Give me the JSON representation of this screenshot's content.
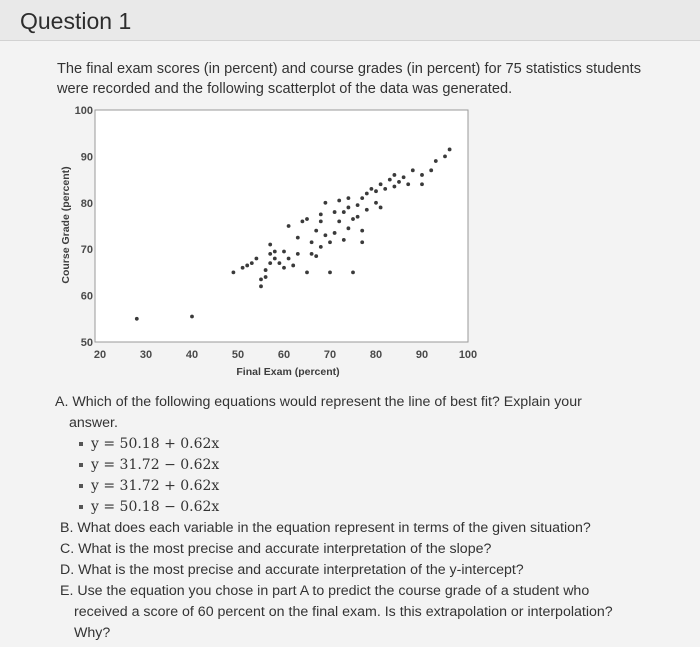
{
  "header": {
    "title": "Question 1"
  },
  "intro": {
    "line1": "The final exam scores (in percent) and course grades (in percent) for 75 statistics students",
    "line2": "were recorded and the following scatterplot of the data was generated."
  },
  "chart_data": {
    "type": "scatter",
    "xlabel": "Final Exam (percent)",
    "ylabel": "Course Grade (percent)",
    "xlim": [
      20,
      100
    ],
    "ylim": [
      50,
      100
    ],
    "xticks": [
      "20",
      "30",
      "40",
      "50",
      "60",
      "70",
      "80",
      "90",
      "100"
    ],
    "yticks": [
      "50",
      "60",
      "70",
      "80",
      "90",
      "100"
    ],
    "grid": false,
    "points": [
      [
        28,
        55
      ],
      [
        40,
        55.5
      ],
      [
        49,
        65
      ],
      [
        51,
        66
      ],
      [
        52,
        66.5
      ],
      [
        53,
        67
      ],
      [
        54,
        68
      ],
      [
        55,
        62
      ],
      [
        55,
        63.5
      ],
      [
        56,
        64
      ],
      [
        56,
        65.5
      ],
      [
        57,
        67
      ],
      [
        57,
        69
      ],
      [
        57,
        71
      ],
      [
        58,
        68
      ],
      [
        58,
        69.5
      ],
      [
        59,
        67
      ],
      [
        60,
        69.5
      ],
      [
        60,
        66
      ],
      [
        61,
        68
      ],
      [
        61,
        75
      ],
      [
        62,
        66.5
      ],
      [
        63,
        69
      ],
      [
        63,
        72.5
      ],
      [
        64,
        76
      ],
      [
        65,
        76.5
      ],
      [
        65,
        65
      ],
      [
        66,
        69
      ],
      [
        66,
        71.5
      ],
      [
        67,
        68.5
      ],
      [
        67,
        74
      ],
      [
        68,
        70.5
      ],
      [
        68,
        76
      ],
      [
        68,
        77.5
      ],
      [
        69,
        73
      ],
      [
        69,
        80
      ],
      [
        70,
        65
      ],
      [
        70,
        71.5
      ],
      [
        71,
        73.5
      ],
      [
        71,
        78
      ],
      [
        72,
        80.5
      ],
      [
        72,
        76
      ],
      [
        73,
        72
      ],
      [
        73,
        78
      ],
      [
        74,
        74.5
      ],
      [
        74,
        79
      ],
      [
        74,
        81
      ],
      [
        75,
        65
      ],
      [
        75,
        76.5
      ],
      [
        76,
        79.5
      ],
      [
        76,
        77
      ],
      [
        77,
        71.5
      ],
      [
        77,
        74
      ],
      [
        77,
        81
      ],
      [
        78,
        82
      ],
      [
        78,
        78.5
      ],
      [
        79,
        83
      ],
      [
        80,
        80
      ],
      [
        80,
        82.5
      ],
      [
        81,
        84
      ],
      [
        81,
        79
      ],
      [
        82,
        83
      ],
      [
        83,
        85
      ],
      [
        84,
        83.5
      ],
      [
        84,
        86
      ],
      [
        85,
        84.5
      ],
      [
        86,
        85.5
      ],
      [
        87,
        84
      ],
      [
        88,
        87
      ],
      [
        90,
        84
      ],
      [
        90,
        86
      ],
      [
        92,
        87
      ],
      [
        93,
        89
      ],
      [
        95,
        90
      ],
      [
        96,
        91.5
      ]
    ]
  },
  "questions": {
    "a_text": "A. Which of the following equations would represent the line of best fit? Explain your",
    "a_text_cont": "answer.",
    "options": [
      "y = 50.18 + 0.62x",
      "y = 31.72 − 0.62x",
      "y = 31.72 + 0.62x",
      "y = 50.18 − 0.62x"
    ],
    "b": "B. What does each variable in the equation represent in terms of the given situation?",
    "c": "C. What is the most precise and accurate interpretation of the slope?",
    "d": "D. What is the most precise and accurate interpretation of the y-intercept?",
    "e1": "E. Use the equation you chose in part A to predict the course grade of a student who",
    "e2": "received a score of 60 percent on the final exam. Is this extrapolation or interpolation?",
    "e3": "Why?"
  }
}
